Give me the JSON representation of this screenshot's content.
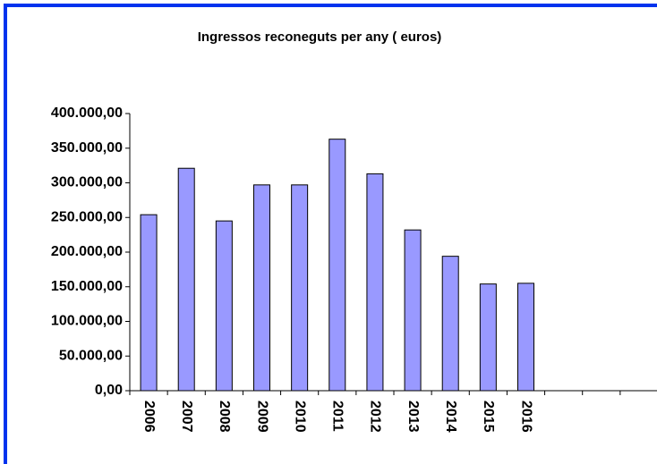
{
  "chart_data": {
    "type": "bar",
    "title": "Ingressos reconeguts per any ( euros)",
    "categories": [
      "2006",
      "2007",
      "2008",
      "2009",
      "2010",
      "2011",
      "2012",
      "2013",
      "2014",
      "2015",
      "2016",
      null,
      null,
      null
    ],
    "values": [
      254000,
      321000,
      245000,
      297000,
      297000,
      363000,
      313000,
      232000,
      194000,
      154000,
      155000,
      null,
      null,
      null
    ],
    "color": "#9999ff",
    "ylim": [
      0,
      400000
    ],
    "yticks": [
      {
        "value": 0,
        "label": "0,00"
      },
      {
        "value": 50000,
        "label": "50.000,00"
      },
      {
        "value": 100000,
        "label": "100.000,00"
      },
      {
        "value": 150000,
        "label": "150.000,00"
      },
      {
        "value": 200000,
        "label": "200.000,00"
      },
      {
        "value": 250000,
        "label": "250.000,00"
      },
      {
        "value": 300000,
        "label": "300.000,00"
      },
      {
        "value": 350000,
        "label": "350.000,00"
      },
      {
        "value": 400000,
        "label": "400.000,00"
      }
    ],
    "grid": false
  }
}
